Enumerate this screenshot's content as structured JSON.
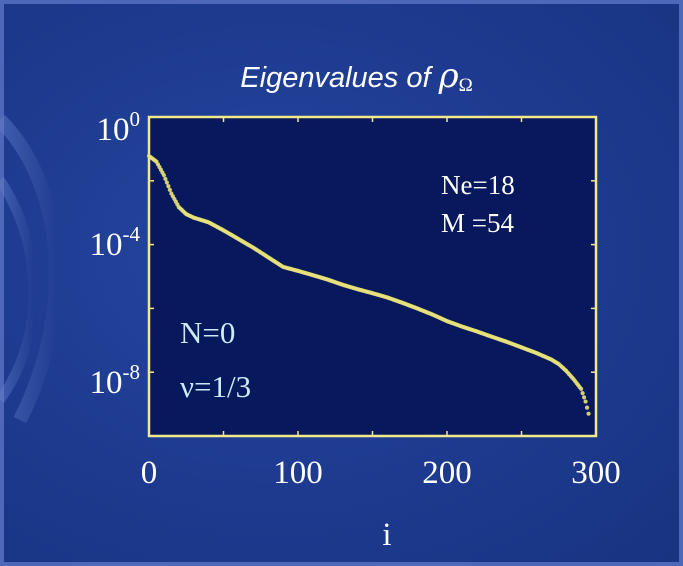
{
  "title": {
    "prefix": "Eigenvalues of",
    "symbol": "ρ",
    "subscript": "Ω"
  },
  "chart_data": {
    "type": "scatter",
    "title": "Eigenvalues of ρΩ",
    "xlabel": "i",
    "ylabel": "",
    "x_ticks": [
      0,
      100,
      200,
      300
    ],
    "y_ticks": [
      {
        "value": 1,
        "base": "10",
        "exponent": "0"
      },
      {
        "value": 0.0001,
        "base": "10",
        "exponent": "-4"
      },
      {
        "value": 1e-08,
        "base": "10",
        "exponent": "-8"
      }
    ],
    "xlim": [
      0,
      300
    ],
    "ylim": [
      1e-10,
      1
    ],
    "y_scale": "log",
    "grid": false,
    "colors": {
      "background": "#07185c",
      "frame": "#f2e98a",
      "points": "#e8e27a"
    },
    "annotations": {
      "top_right": [
        "Ne=18",
        "M =54"
      ],
      "bottom_left": [
        "N=0",
        "ν=1/3"
      ]
    },
    "series": [
      {
        "x": [
          0,
          5,
          10,
          15,
          20,
          25,
          30,
          40,
          50,
          60,
          70,
          80,
          90,
          100,
          110,
          120,
          130,
          140,
          150,
          160,
          170,
          180,
          190,
          200,
          210,
          220,
          230,
          240,
          250,
          260,
          270,
          275,
          280,
          285,
          290,
          293,
          295
        ],
        "y": [
          0.06,
          0.04,
          0.015,
          0.004,
          0.0015,
          0.0009,
          0.0007,
          0.0005,
          0.00028,
          0.00015,
          8e-05,
          4e-05,
          2e-05,
          1.5e-05,
          1.1e-05,
          8e-06,
          5.5e-06,
          4e-06,
          3e-06,
          2.2e-06,
          1.5e-06,
          1e-06,
          6.5e-07,
          4e-07,
          2.7e-07,
          1.9e-07,
          1.3e-07,
          9e-08,
          6e-08,
          4e-08,
          2.5e-08,
          1.8e-08,
          1.1e-08,
          6e-09,
          3e-09,
          1.2e-09,
          5e-10
        ]
      }
    ]
  }
}
